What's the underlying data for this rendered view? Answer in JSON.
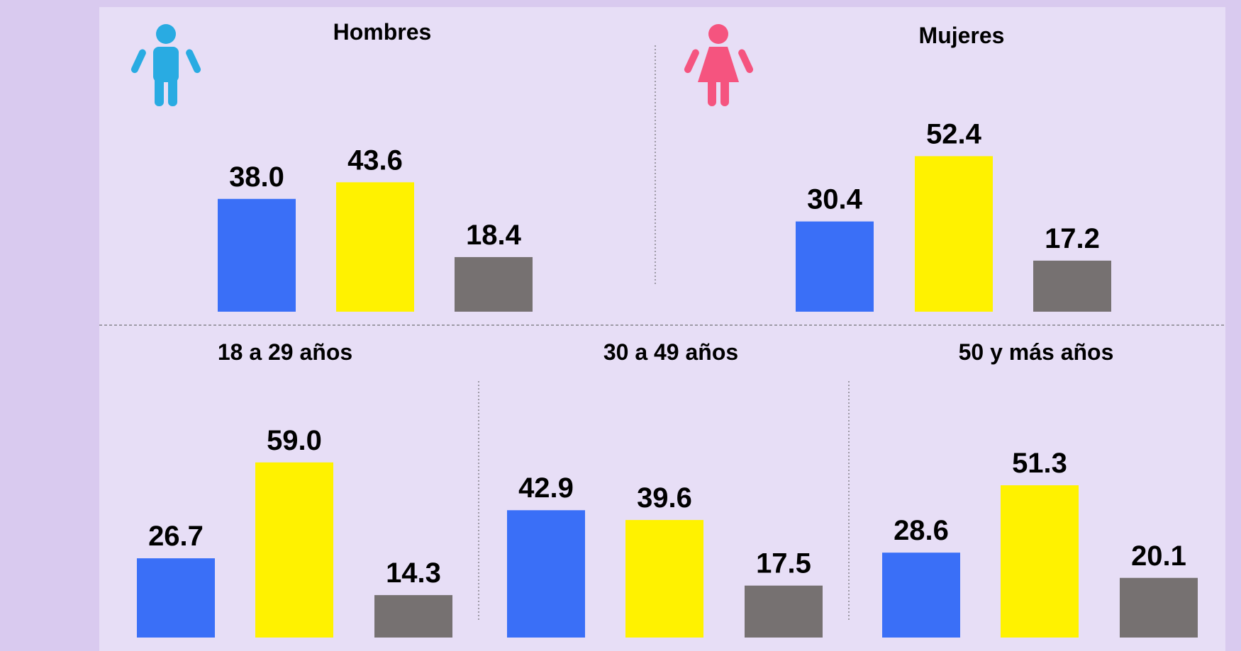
{
  "chart_data": [
    {
      "type": "bar",
      "title": "Hombres",
      "values": [
        38.0,
        43.6,
        18.4
      ],
      "value_labels": [
        "38.0",
        "43.6",
        "18.4"
      ],
      "colors": [
        "#3a6ff7",
        "#fff200",
        "#767171"
      ]
    },
    {
      "type": "bar",
      "title": "Mujeres",
      "values": [
        30.4,
        52.4,
        17.2
      ],
      "value_labels": [
        "30.4",
        "52.4",
        "17.2"
      ],
      "colors": [
        "#3a6ff7",
        "#fff200",
        "#767171"
      ]
    },
    {
      "type": "bar",
      "title": "18 a 29 años",
      "values": [
        26.7,
        59.0,
        14.3
      ],
      "value_labels": [
        "26.7",
        "59.0",
        "14.3"
      ],
      "colors": [
        "#3a6ff7",
        "#fff200",
        "#767171"
      ]
    },
    {
      "type": "bar",
      "title": "30 a 49 años",
      "values": [
        42.9,
        39.6,
        17.5
      ],
      "value_labels": [
        "42.9",
        "39.6",
        "17.5"
      ],
      "colors": [
        "#3a6ff7",
        "#fff200",
        "#767171"
      ]
    },
    {
      "type": "bar",
      "title": "50 y más años",
      "values": [
        28.6,
        51.3,
        20.1
      ],
      "value_labels": [
        "28.6",
        "51.3",
        "20.1"
      ],
      "colors": [
        "#3a6ff7",
        "#fff200",
        "#767171"
      ]
    }
  ]
}
